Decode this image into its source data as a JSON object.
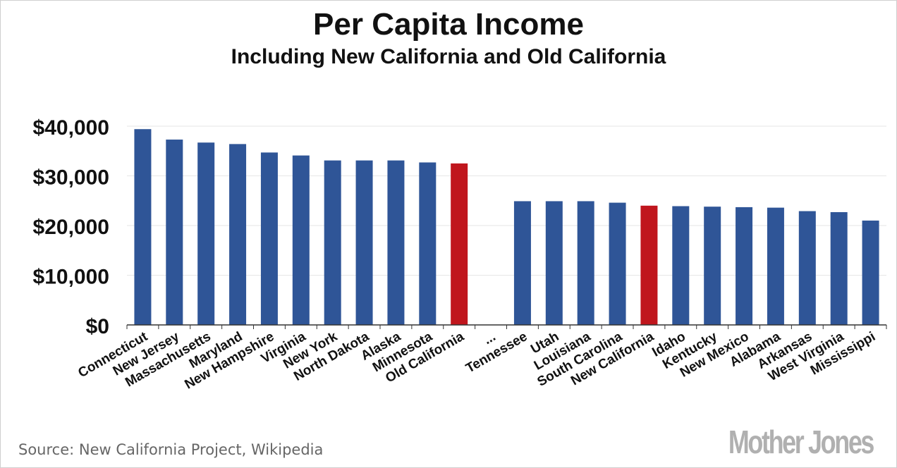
{
  "chart_data": {
    "type": "bar",
    "title": "Per Capita Income",
    "subtitle": "Including New California and Old California",
    "categories": [
      "Connecticut",
      "New Jersey",
      "Massachusetts",
      "Maryland",
      "New Hampshire",
      "Virginia",
      "New York",
      "North Dakota",
      "Alaska",
      "Minnesota",
      "Old California",
      "...",
      "Tennessee",
      "Utah",
      "Louisiana",
      "South Carolina",
      "New California",
      "Idaho",
      "Kentucky",
      "New Mexico",
      "Alabama",
      "Arkansas",
      "West Virginia",
      "Mississippi"
    ],
    "values": [
      39400,
      37300,
      36700,
      36400,
      34700,
      34100,
      33100,
      33100,
      33100,
      32700,
      32500,
      null,
      24900,
      24900,
      24900,
      24600,
      24000,
      23900,
      23800,
      23700,
      23600,
      22900,
      22700,
      21000
    ],
    "highlight": [
      "Old California",
      "New California"
    ],
    "colors": {
      "default": "#2f5597",
      "highlight": "#c0161d"
    },
    "ylim": [
      0,
      40000
    ],
    "yticks": [
      0,
      10000,
      20000,
      30000,
      40000
    ],
    "ytick_labels": [
      "$0",
      "$10,000",
      "$20,000",
      "$30,000",
      "$40,000"
    ],
    "xlabel": "",
    "ylabel": "",
    "grid": true
  },
  "footer": {
    "source": "Source: New California Project, Wikipedia",
    "logo": "Mother Jones"
  }
}
